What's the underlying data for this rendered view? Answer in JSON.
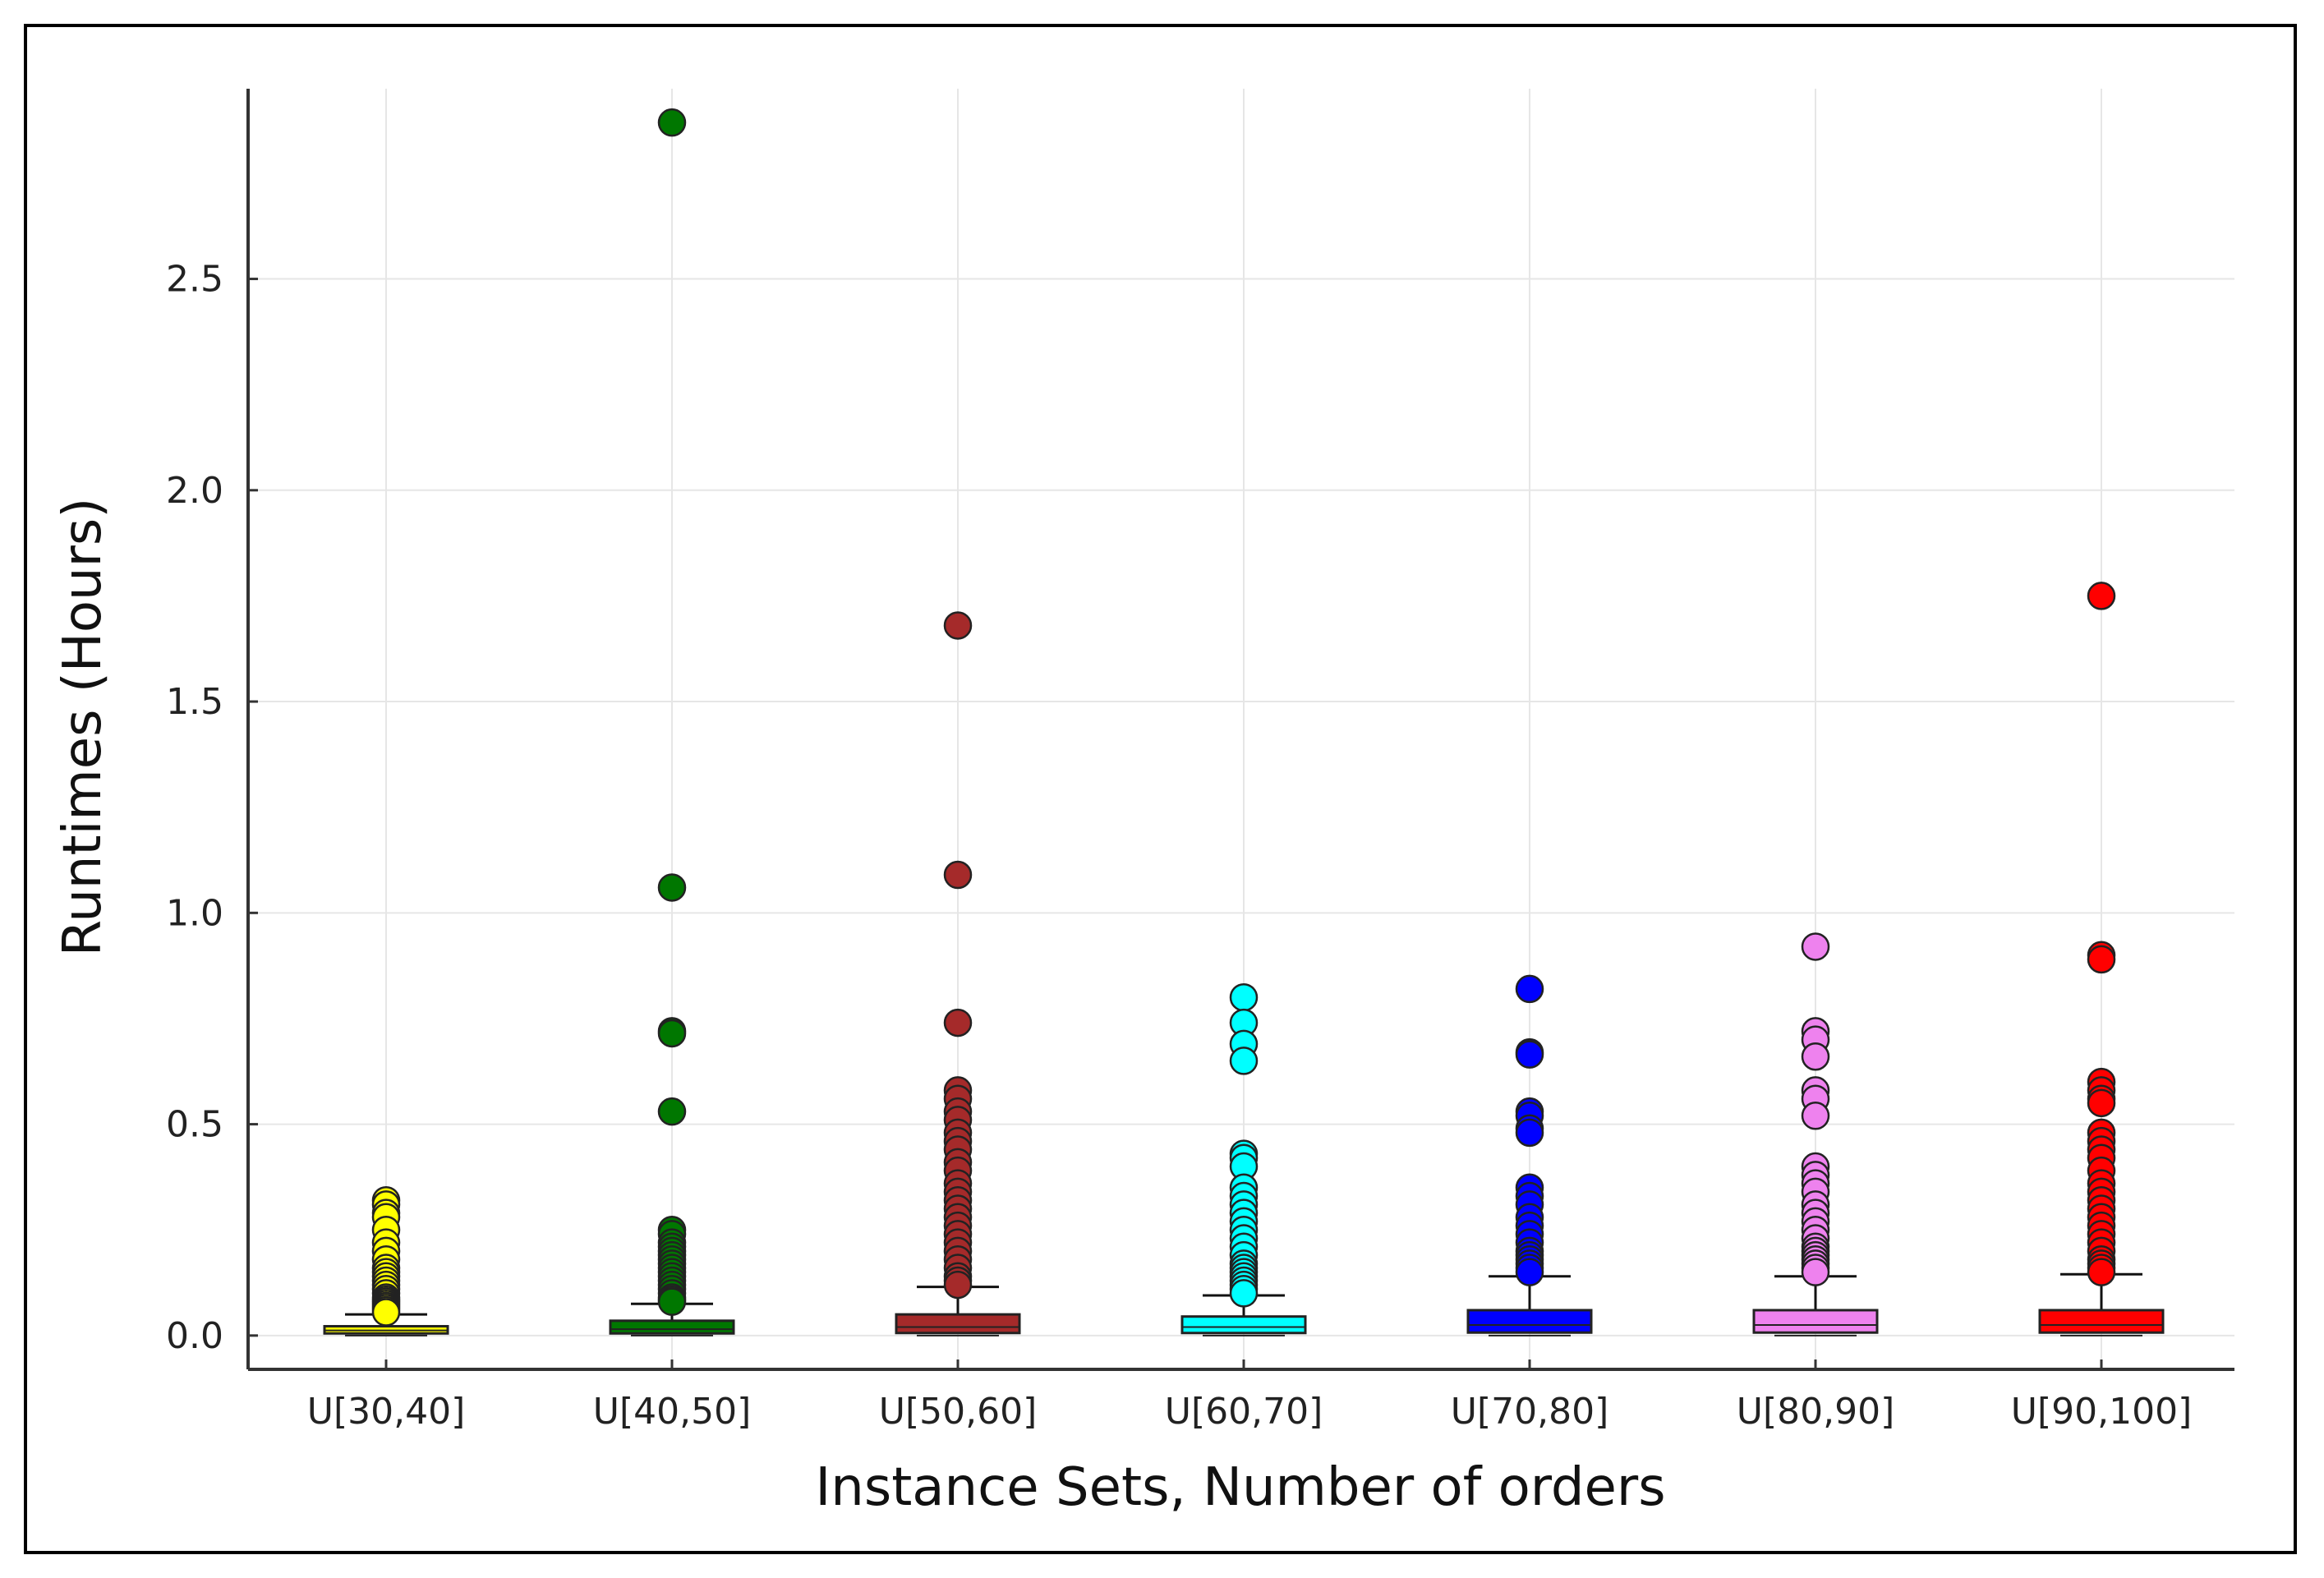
{
  "chart_data": {
    "type": "box",
    "title": "",
    "xlabel": "Instance Sets, Number of orders",
    "ylabel": "Runtimes (Hours)",
    "ylim": [
      -0.08,
      2.95
    ],
    "yticks": [
      0.0,
      0.5,
      1.0,
      1.5,
      2.0,
      2.5
    ],
    "ytick_labels": [
      "0.0",
      "0.5",
      "1.0",
      "1.5",
      "2.0",
      "2.5"
    ],
    "grid": true,
    "categories": [
      "U[30,40]",
      "U[40,50]",
      "U[50,60]",
      "U[60,70]",
      "U[70,80]",
      "U[80,90]",
      "U[90,100]"
    ],
    "series": [
      {
        "name": "U[30,40]",
        "color": "#ffff00",
        "min": 0.0,
        "q1": 0.005,
        "median": 0.012,
        "q3": 0.022,
        "whisker_high": 0.05,
        "outliers": [
          0.32,
          0.31,
          0.29,
          0.28,
          0.25,
          0.22,
          0.2,
          0.18,
          0.16,
          0.15,
          0.14,
          0.13,
          0.12,
          0.11,
          0.1,
          0.09,
          0.085,
          0.08,
          0.075,
          0.07,
          0.065,
          0.06,
          0.055
        ]
      },
      {
        "name": "U[40,50]",
        "color": "#007700",
        "min": 0.0,
        "q1": 0.005,
        "median": 0.015,
        "q3": 0.035,
        "whisker_high": 0.075,
        "outliers": [
          2.87,
          1.06,
          0.72,
          0.715,
          0.53,
          0.25,
          0.24,
          0.22,
          0.21,
          0.2,
          0.19,
          0.18,
          0.17,
          0.16,
          0.15,
          0.14,
          0.13,
          0.12,
          0.11,
          0.1,
          0.09,
          0.085,
          0.08
        ]
      },
      {
        "name": "U[50,60]",
        "color": "#a52a2a",
        "min": 0.0,
        "q1": 0.006,
        "median": 0.02,
        "q3": 0.05,
        "whisker_high": 0.115,
        "outliers": [
          1.68,
          1.09,
          0.74,
          0.58,
          0.56,
          0.53,
          0.51,
          0.48,
          0.46,
          0.44,
          0.41,
          0.39,
          0.36,
          0.34,
          0.32,
          0.3,
          0.28,
          0.26,
          0.24,
          0.22,
          0.2,
          0.18,
          0.16,
          0.14,
          0.13,
          0.12
        ]
      },
      {
        "name": "U[60,70]",
        "color": "#00ffff",
        "min": 0.0,
        "q1": 0.006,
        "median": 0.02,
        "q3": 0.045,
        "whisker_high": 0.095,
        "outliers": [
          0.8,
          0.74,
          0.69,
          0.65,
          0.43,
          0.42,
          0.4,
          0.35,
          0.33,
          0.31,
          0.29,
          0.27,
          0.25,
          0.23,
          0.21,
          0.19,
          0.17,
          0.16,
          0.15,
          0.14,
          0.13,
          0.12,
          0.11,
          0.1
        ]
      },
      {
        "name": "U[70,80]",
        "color": "#0000ff",
        "min": 0.0,
        "q1": 0.007,
        "median": 0.025,
        "q3": 0.06,
        "whisker_high": 0.14,
        "outliers": [
          0.82,
          0.67,
          0.665,
          0.53,
          0.52,
          0.49,
          0.48,
          0.35,
          0.33,
          0.31,
          0.28,
          0.26,
          0.24,
          0.22,
          0.2,
          0.19,
          0.18,
          0.17,
          0.16,
          0.15
        ]
      },
      {
        "name": "U[80,90]",
        "color": "#ee82ee",
        "min": 0.0,
        "q1": 0.007,
        "median": 0.025,
        "q3": 0.06,
        "whisker_high": 0.14,
        "outliers": [
          0.92,
          0.72,
          0.7,
          0.66,
          0.58,
          0.56,
          0.52,
          0.4,
          0.38,
          0.36,
          0.34,
          0.31,
          0.29,
          0.27,
          0.25,
          0.23,
          0.21,
          0.2,
          0.19,
          0.18,
          0.17,
          0.16,
          0.15
        ]
      },
      {
        "name": "U[90,100]",
        "color": "#ff0000",
        "min": 0.0,
        "q1": 0.007,
        "median": 0.025,
        "q3": 0.06,
        "whisker_high": 0.145,
        "outliers": [
          1.75,
          0.9,
          0.89,
          0.6,
          0.58,
          0.56,
          0.55,
          0.48,
          0.46,
          0.44,
          0.42,
          0.39,
          0.36,
          0.34,
          0.32,
          0.3,
          0.28,
          0.26,
          0.24,
          0.22,
          0.2,
          0.18,
          0.17,
          0.16,
          0.15
        ]
      }
    ]
  }
}
